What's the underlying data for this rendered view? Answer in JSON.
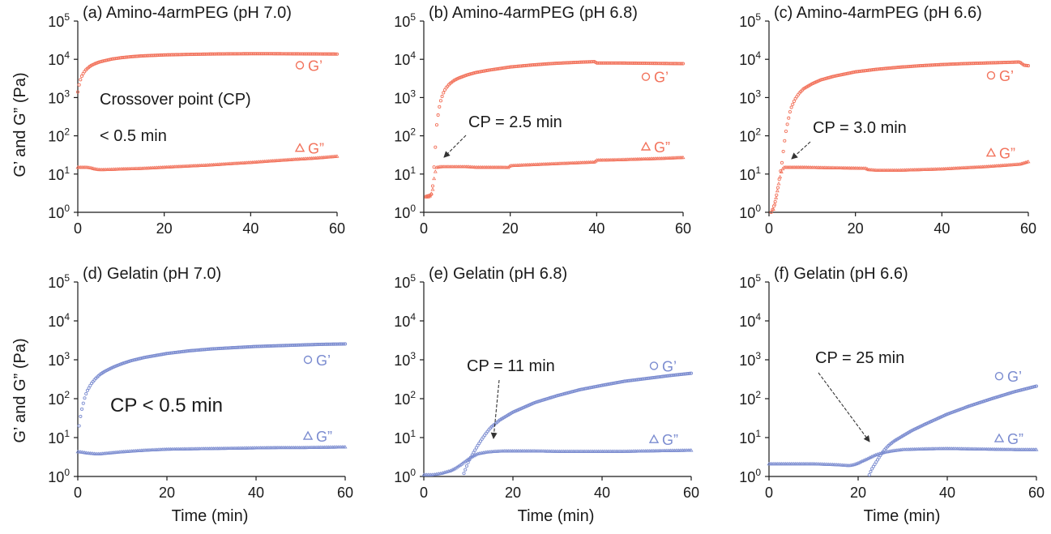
{
  "figure": {
    "ylabel": "G’ and G” (Pa)",
    "xlabel": "Time (min)",
    "x_ticks": [
      "0",
      "20",
      "40",
      "60"
    ],
    "y_tick_base": "10",
    "y_tick_exponents": [
      "0",
      "1",
      "2",
      "3",
      "4",
      "5"
    ]
  },
  "colors": {
    "peg": "#f2735c",
    "gelatin": "#7b8cd0",
    "text": "#1a1a1a",
    "arrow": "#333333"
  },
  "chart_data": [
    {
      "type": "scatter",
      "id": "a",
      "title": "(a) Amino-4armPEG (pH 7.0)",
      "xlim": [
        0,
        60
      ],
      "ylim": [
        1,
        100000
      ],
      "yscale": "log",
      "color_key": "peg",
      "legend": {
        "gprime": "G’",
        "gdouble": "G”"
      },
      "gprime_level": 7000,
      "gdouble_level": 48,
      "annotations": [
        {
          "text": "Crossover point (CP)"
        },
        {
          "text": "< 0.5 min"
        }
      ],
      "series": [
        {
          "name": "G’",
          "marker": "circle",
          "x": [
            0,
            0.25,
            0.5,
            1,
            1.5,
            2,
            3,
            4,
            5,
            6,
            8,
            10,
            12,
            15,
            20,
            25,
            30,
            35,
            40,
            45,
            50,
            55,
            60
          ],
          "y": [
            1400,
            2000,
            2700,
            3800,
            4700,
            5500,
            6800,
            7700,
            8500,
            9100,
            10200,
            11000,
            11600,
            12300,
            13000,
            13400,
            13700,
            13900,
            14000,
            14000,
            13900,
            13800,
            13700
          ]
        },
        {
          "name": "G”",
          "marker": "triangle",
          "x": [
            0,
            1,
            2,
            3,
            4,
            5,
            6,
            8,
            10,
            15,
            20,
            25,
            30,
            35,
            40,
            45,
            50,
            55,
            60
          ],
          "y": [
            15,
            15,
            15,
            14.5,
            13.5,
            13,
            13,
            13.2,
            13.5,
            14,
            15,
            16,
            17,
            18.5,
            20,
            22,
            24,
            26,
            29
          ]
        }
      ]
    },
    {
      "type": "scatter",
      "id": "b",
      "title": "(b) Amino-4armPEG (pH 6.8)",
      "xlim": [
        0,
        60
      ],
      "ylim": [
        1,
        100000
      ],
      "yscale": "log",
      "color_key": "peg",
      "legend": {
        "gprime": "G’",
        "gdouble": "G”"
      },
      "gprime_level": 3500,
      "gdouble_level": 52,
      "annotations": [
        {
          "text": "CP = 2.5 min"
        }
      ],
      "series": [
        {
          "name": "G’",
          "marker": "circle",
          "x": [
            0.5,
            1,
            1.5,
            1.8,
            2,
            2.2,
            2.5,
            2.8,
            3,
            3.5,
            4,
            4.5,
            5,
            6,
            7,
            8,
            10,
            12,
            15,
            20,
            25,
            30,
            35,
            39.5,
            40,
            45,
            50,
            55,
            60
          ],
          "y": [
            2.6,
            2.7,
            2.8,
            3,
            4,
            8,
            25,
            80,
            200,
            500,
            900,
            1300,
            1700,
            2300,
            2800,
            3200,
            3900,
            4500,
            5200,
            6300,
            7100,
            7800,
            8300,
            8700,
            8000,
            8000,
            7900,
            7800,
            7700
          ]
        },
        {
          "name": "G”",
          "marker": "triangle",
          "x": [
            0.5,
            1,
            1.5,
            2,
            2.5,
            3,
            4,
            6,
            8,
            10,
            12,
            15,
            18,
            19.5,
            20,
            25,
            30,
            35,
            39.5,
            40,
            45,
            50,
            55,
            60
          ],
          "y": [
            2.5,
            2.5,
            2.7,
            3.5,
            10,
            15,
            15.5,
            15.5,
            15.5,
            15.5,
            15,
            15,
            15,
            14.8,
            16.5,
            17.5,
            18.5,
            19.5,
            20.5,
            23,
            23.5,
            24.5,
            25.5,
            27
          ]
        }
      ]
    },
    {
      "type": "scatter",
      "id": "c",
      "title": "(c) Amino-4armPEG (pH 6.6)",
      "xlim": [
        0,
        60
      ],
      "ylim": [
        1,
        100000
      ],
      "yscale": "log",
      "color_key": "peg",
      "legend": {
        "gprime": "G’",
        "gdouble": "G”"
      },
      "gprime_level": 3800,
      "gdouble_level": 36,
      "annotations": [
        {
          "text": "CP = 3.0 min"
        }
      ],
      "series": [
        {
          "name": "G’",
          "marker": "circle",
          "x": [
            0.5,
            1,
            1.5,
            2,
            2.5,
            3,
            3.5,
            4,
            5,
            6,
            7,
            8,
            10,
            12,
            15,
            20,
            25,
            30,
            35,
            40,
            45,
            50,
            55,
            58,
            59,
            60
          ],
          "y": [
            1,
            1.3,
            2,
            4,
            9,
            20,
            60,
            150,
            500,
            900,
            1300,
            1700,
            2300,
            2900,
            3600,
            4700,
            5500,
            6200,
            6800,
            7300,
            7700,
            8000,
            8300,
            8500,
            7000,
            6800
          ]
        },
        {
          "name": "G”",
          "marker": "triangle",
          "x": [
            1,
            1.5,
            2,
            2.5,
            3,
            3.5,
            4,
            6,
            8,
            10,
            15,
            20,
            22.5,
            23,
            25,
            30,
            35,
            40,
            45,
            50,
            55,
            58,
            60
          ],
          "y": [
            1.2,
            2,
            4,
            8,
            13,
            15,
            15,
            15,
            15,
            14.8,
            14.5,
            14.2,
            14,
            13,
            12.5,
            12.5,
            13,
            13.5,
            14.5,
            15.5,
            17,
            18,
            21
          ]
        }
      ]
    },
    {
      "type": "scatter",
      "id": "d",
      "title": "(d) Gelatin (pH 7.0)",
      "xlim": [
        0,
        60
      ],
      "ylim": [
        1,
        100000
      ],
      "yscale": "log",
      "color_key": "gelatin",
      "legend": {
        "gprime": "G’",
        "gdouble": "G”"
      },
      "gprime_level": 1000,
      "gdouble_level": 11,
      "annotations": [
        {
          "text": "CP < 0.5 min"
        }
      ],
      "series": [
        {
          "name": "G’",
          "marker": "circle",
          "x": [
            0.3,
            0.5,
            1,
            1.5,
            2,
            3,
            4,
            5,
            6,
            8,
            10,
            12,
            15,
            20,
            25,
            30,
            35,
            40,
            45,
            50,
            55,
            60
          ],
          "y": [
            20,
            30,
            60,
            100,
            150,
            240,
            330,
            420,
            500,
            650,
            800,
            950,
            1150,
            1450,
            1700,
            1900,
            2050,
            2200,
            2300,
            2400,
            2500,
            2550
          ]
        },
        {
          "name": "G”",
          "marker": "triangle",
          "x": [
            0,
            1,
            2,
            3,
            4,
            5,
            6,
            8,
            10,
            15,
            20,
            25,
            30,
            35,
            40,
            45,
            50,
            55,
            60
          ],
          "y": [
            4.3,
            4.2,
            4.0,
            3.9,
            3.8,
            3.8,
            3.9,
            4.1,
            4.3,
            4.7,
            5.0,
            5.1,
            5.2,
            5.3,
            5.4,
            5.5,
            5.5,
            5.6,
            5.7
          ]
        }
      ]
    },
    {
      "type": "scatter",
      "id": "e",
      "title": "(e) Gelatin (pH 6.8)",
      "xlim": [
        0,
        60
      ],
      "ylim": [
        1,
        100000
      ],
      "yscale": "log",
      "color_key": "gelatin",
      "legend": {
        "gprime": "G’",
        "gdouble": "G”"
      },
      "gprime_level": 700,
      "gdouble_level": 9,
      "annotations": [
        {
          "text": "CP = 11 min"
        }
      ],
      "series": [
        {
          "name": "G’",
          "marker": "circle",
          "x": [
            9,
            9.5,
            10,
            11,
            12,
            13,
            14,
            15,
            17,
            20,
            25,
            30,
            35,
            40,
            45,
            50,
            55,
            60
          ],
          "y": [
            1.2,
            1.7,
            2.4,
            3.8,
            6,
            9,
            13,
            18,
            28,
            45,
            80,
            120,
            170,
            220,
            280,
            330,
            390,
            450
          ]
        },
        {
          "name": "G”",
          "marker": "triangle",
          "x": [
            0,
            2,
            4,
            5,
            6,
            7,
            8,
            9,
            10,
            11,
            12,
            14,
            16,
            18,
            20,
            25,
            30,
            35,
            40,
            45,
            50,
            55,
            60
          ],
          "y": [
            1.1,
            1.1,
            1.2,
            1.3,
            1.4,
            1.6,
            1.9,
            2.3,
            2.8,
            3.3,
            3.8,
            4.2,
            4.4,
            4.5,
            4.5,
            4.5,
            4.4,
            4.4,
            4.4,
            4.4,
            4.5,
            4.6,
            4.7
          ]
        }
      ]
    },
    {
      "type": "scatter",
      "id": "f",
      "title": "(f) Gelatin (pH 6.6)",
      "xlim": [
        0,
        60
      ],
      "ylim": [
        1,
        100000
      ],
      "yscale": "log",
      "color_key": "gelatin",
      "legend": {
        "gprime": "G’",
        "gdouble": "G”"
      },
      "gprime_level": 380,
      "gdouble_level": 9.5,
      "annotations": [
        {
          "text": "CP = 25 min"
        }
      ],
      "series": [
        {
          "name": "G’",
          "marker": "circle",
          "x": [
            22.5,
            23,
            24,
            25,
            26,
            27,
            28,
            30,
            32,
            35,
            40,
            45,
            50,
            55,
            60
          ],
          "y": [
            1.1,
            1.5,
            2.3,
            3.5,
            5,
            6.5,
            8,
            11,
            15,
            22,
            40,
            65,
            100,
            150,
            210
          ]
        },
        {
          "name": "G”",
          "marker": "triangle",
          "x": [
            0,
            5,
            10,
            15,
            18,
            19,
            20,
            21,
            22,
            23,
            24,
            25,
            26,
            28,
            30,
            35,
            40,
            45,
            50,
            55,
            60
          ],
          "y": [
            2.1,
            2.1,
            2.1,
            2.0,
            1.9,
            2.0,
            2.2,
            2.5,
            2.8,
            3.2,
            3.6,
            3.9,
            4.2,
            4.6,
            4.9,
            5.1,
            5.2,
            5.1,
            5.0,
            4.9,
            4.9
          ]
        }
      ]
    }
  ]
}
